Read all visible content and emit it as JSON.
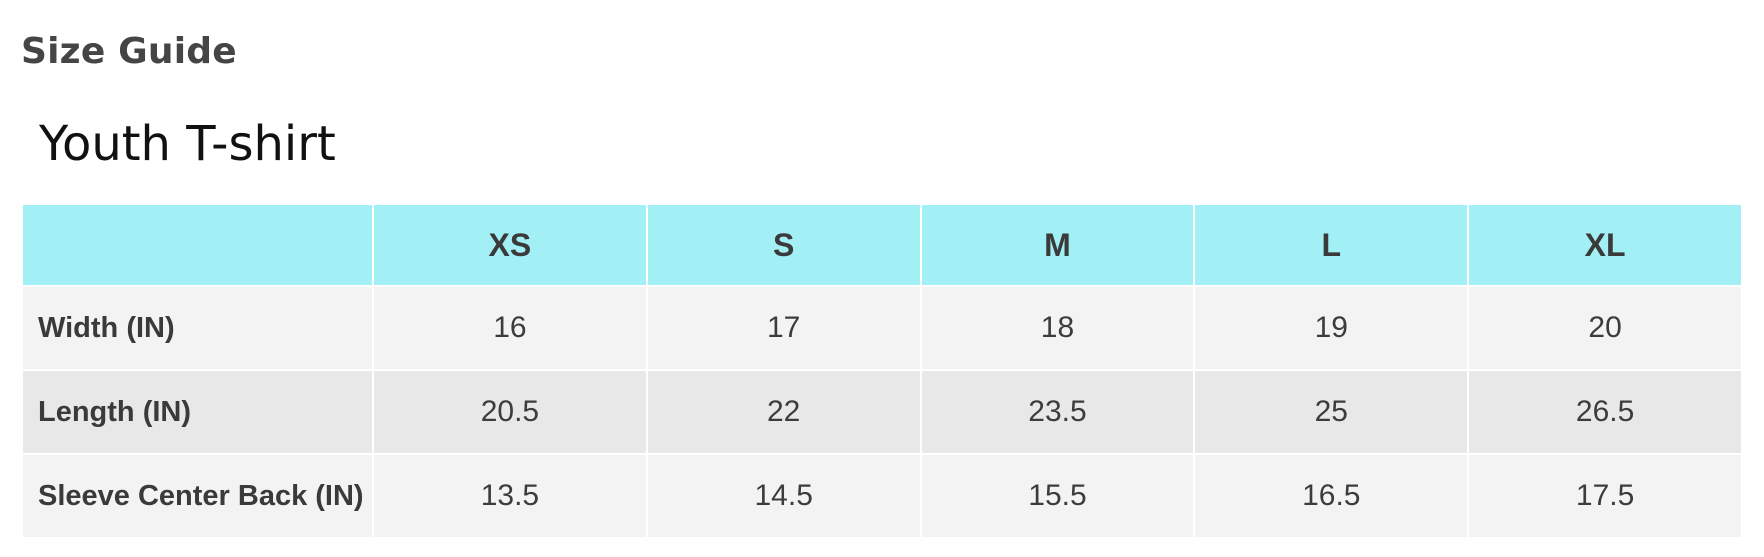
{
  "page": {
    "heading": "Size Guide",
    "product_title": "Youth T-shirt"
  },
  "table": {
    "corner_label": "",
    "headers": [
      "XS",
      "S",
      "M",
      "L",
      "XL"
    ],
    "rows": [
      {
        "label": "Width (IN)",
        "values": [
          "16",
          "17",
          "18",
          "19",
          "20"
        ]
      },
      {
        "label": "Length (IN)",
        "values": [
          "20.5",
          "22",
          "23.5",
          "25",
          "26.5"
        ]
      },
      {
        "label": "Sleeve Center Back (IN)",
        "values": [
          "13.5",
          "14.5",
          "15.5",
          "16.5",
          "17.5"
        ]
      }
    ]
  },
  "colors": {
    "header_background": "#a2eff5",
    "row_light": "#f3f3f3",
    "row_dark": "#e8e8e8",
    "text": "#3c3c3c"
  }
}
